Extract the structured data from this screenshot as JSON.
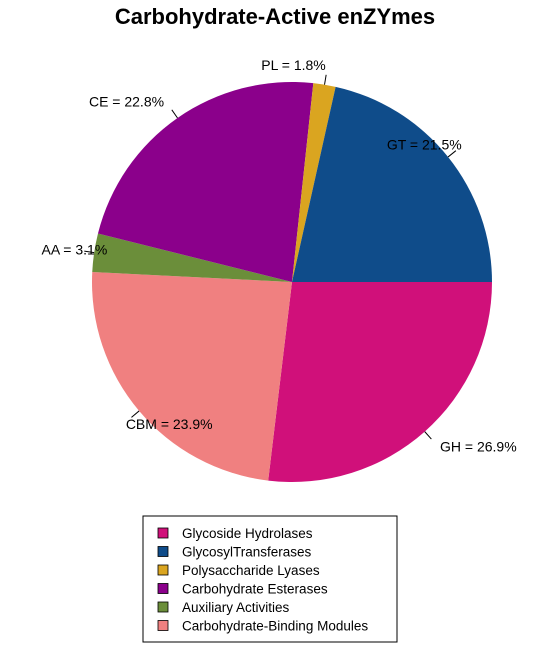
{
  "chart_data": {
    "type": "pie",
    "title": "Carbohydrate-Active enZYmes",
    "slices": [
      {
        "code": "GH",
        "label": "GH = 26.9%",
        "legend": "Glycoside Hydrolases",
        "value": 26.9,
        "color": "#D0107A"
      },
      {
        "code": "CBM",
        "label": "CBM = 23.9%",
        "legend": "Carbohydrate-Binding Modules",
        "value": 23.9,
        "color": "#F08080"
      },
      {
        "code": "AA",
        "label": "AA = 3.1%",
        "legend": "Auxiliary Activities",
        "value": 3.1,
        "color": "#6B8E3A"
      },
      {
        "code": "CE",
        "label": "CE = 22.8%",
        "legend": "Carbohydrate Esterases",
        "value": 22.8,
        "color": "#8B008B"
      },
      {
        "code": "PL",
        "label": "PL = 1.8%",
        "legend": "Polysaccharide Lyases",
        "value": 1.8,
        "color": "#DAA520"
      },
      {
        "code": "GT",
        "label": "GT = 21.5%",
        "legend": "GlycosylTransferases",
        "value": 21.5,
        "color": "#0F4C8A"
      }
    ],
    "legend_order": [
      "GH",
      "GT",
      "PL",
      "CE",
      "AA",
      "CBM"
    ],
    "legend_position": "bottom"
  }
}
